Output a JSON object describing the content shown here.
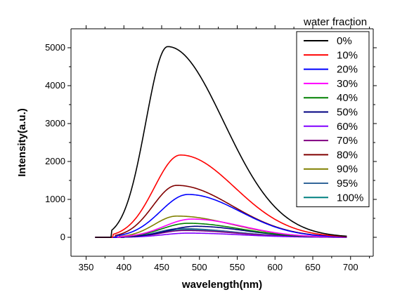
{
  "chart_data": {
    "type": "line",
    "title": "",
    "xlabel": "wavelength(nm)",
    "ylabel": "Intensity(a.u.)",
    "xlim": [
      330,
      730
    ],
    "ylim": [
      -500,
      5500
    ],
    "xticks": [
      350,
      400,
      450,
      500,
      550,
      600,
      650,
      700
    ],
    "yticks": [
      0,
      1000,
      2000,
      3000,
      4000,
      5000
    ],
    "grid": false,
    "legend": {
      "title": "water fraction",
      "placement": "top-right",
      "boxed": true
    },
    "x_start": 362,
    "x_end": 695,
    "series": [
      {
        "name": "0%",
        "color": "#000000",
        "peak_wavelength": 458,
        "peak_intensity": 5030,
        "onset": 383,
        "tail_end": 680
      },
      {
        "name": "10%",
        "color": "#ff0000",
        "peak_wavelength": 475,
        "peak_intensity": 2170,
        "onset": 385,
        "tail_end": 690
      },
      {
        "name": "20%",
        "color": "#0000ff",
        "peak_wavelength": 485,
        "peak_intensity": 1130,
        "onset": 390,
        "tail_end": 690
      },
      {
        "name": "30%",
        "color": "#ff00ff",
        "peak_wavelength": 490,
        "peak_intensity": 480,
        "onset": 395,
        "tail_end": 690
      },
      {
        "name": "40%",
        "color": "#008000",
        "peak_wavelength": 485,
        "peak_intensity": 370,
        "onset": 395,
        "tail_end": 690
      },
      {
        "name": "50%",
        "color": "#000080",
        "peak_wavelength": 495,
        "peak_intensity": 290,
        "onset": 400,
        "tail_end": 690
      },
      {
        "name": "60%",
        "color": "#8000ff",
        "peak_wavelength": 485,
        "peak_intensity": 110,
        "onset": 400,
        "tail_end": 690
      },
      {
        "name": "70%",
        "color": "#800080",
        "peak_wavelength": 480,
        "peak_intensity": 180,
        "onset": 400,
        "tail_end": 690
      },
      {
        "name": "80%",
        "color": "#800000",
        "peak_wavelength": 470,
        "peak_intensity": 1370,
        "onset": 388,
        "tail_end": 690
      },
      {
        "name": "90%",
        "color": "#808000",
        "peak_wavelength": 470,
        "peak_intensity": 560,
        "onset": 393,
        "tail_end": 690
      },
      {
        "name": "95%",
        "color": "#336699",
        "peak_wavelength": 475,
        "peak_intensity": 230,
        "onset": 398,
        "tail_end": 690
      },
      {
        "name": "100%",
        "color": "#008080",
        "peak_wavelength": 480,
        "peak_intensity": 200,
        "onset": 398,
        "tail_end": 690
      }
    ]
  }
}
